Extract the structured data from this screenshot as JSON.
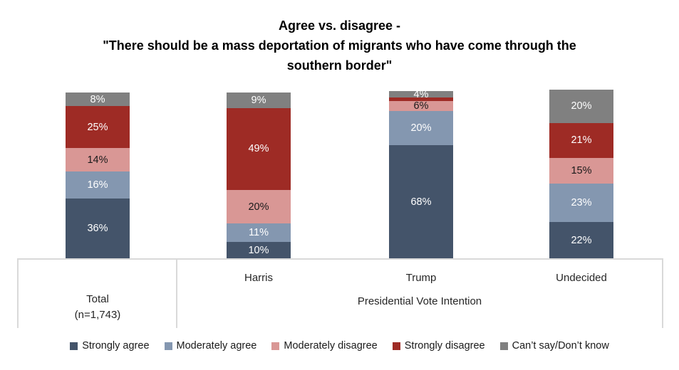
{
  "title": {
    "lines": [
      "Agree vs. disagree -",
      "\"There should be a mass deportation of migrants who have come through the",
      "southern border\""
    ]
  },
  "chart_data": {
    "type": "bar",
    "stacked": true,
    "orientation": "vertical",
    "title": "Agree vs. disagree - \"There should be a mass deportation of migrants who have come through the southern border\"",
    "categories": [
      "Total (n=1,743)",
      "Harris",
      "Trump",
      "Undecided"
    ],
    "ylim": [
      0,
      100
    ],
    "grid": false,
    "legend_position": "bottom",
    "unit": "%",
    "series": [
      {
        "name": "Strongly agree",
        "color": "#44546A",
        "label_color": "#ffffff",
        "values": [
          36,
          10,
          68,
          22
        ],
        "labels": [
          "36%",
          "10%",
          "68%",
          "22%"
        ]
      },
      {
        "name": "Moderately agree",
        "color": "#8497B0",
        "label_color": "#ffffff",
        "values": [
          16,
          11,
          20,
          23
        ],
        "labels": [
          "16%",
          "11%",
          "20%",
          "23%"
        ]
      },
      {
        "name": "Moderately disagree",
        "color": "#D99795",
        "label_color": "#1a1a1a",
        "values": [
          14,
          20,
          6,
          15
        ],
        "labels": [
          "14%",
          "20%",
          "6%",
          "15%"
        ]
      },
      {
        "name": "Strongly disagree",
        "color": "#9E2B25",
        "label_color": "#ffffff",
        "values": [
          25,
          49,
          2,
          21
        ],
        "labels": [
          "25%",
          "49%",
          "",
          "21%"
        ]
      },
      {
        "name": "Can’t say/Don’t know",
        "color": "#808080",
        "label_color": "#ffffff",
        "values": [
          8,
          9,
          4,
          20
        ],
        "labels": [
          "8%",
          "9%",
          "4%",
          "20%"
        ]
      }
    ],
    "category_axis": {
      "total_label_line1": "Total",
      "total_label_line2": "(n=1,743)",
      "group_categories": {
        "harris": "Harris",
        "trump": "Trump",
        "undecided": "Undecided"
      },
      "group_label": "Presidential Vote Intention"
    }
  }
}
